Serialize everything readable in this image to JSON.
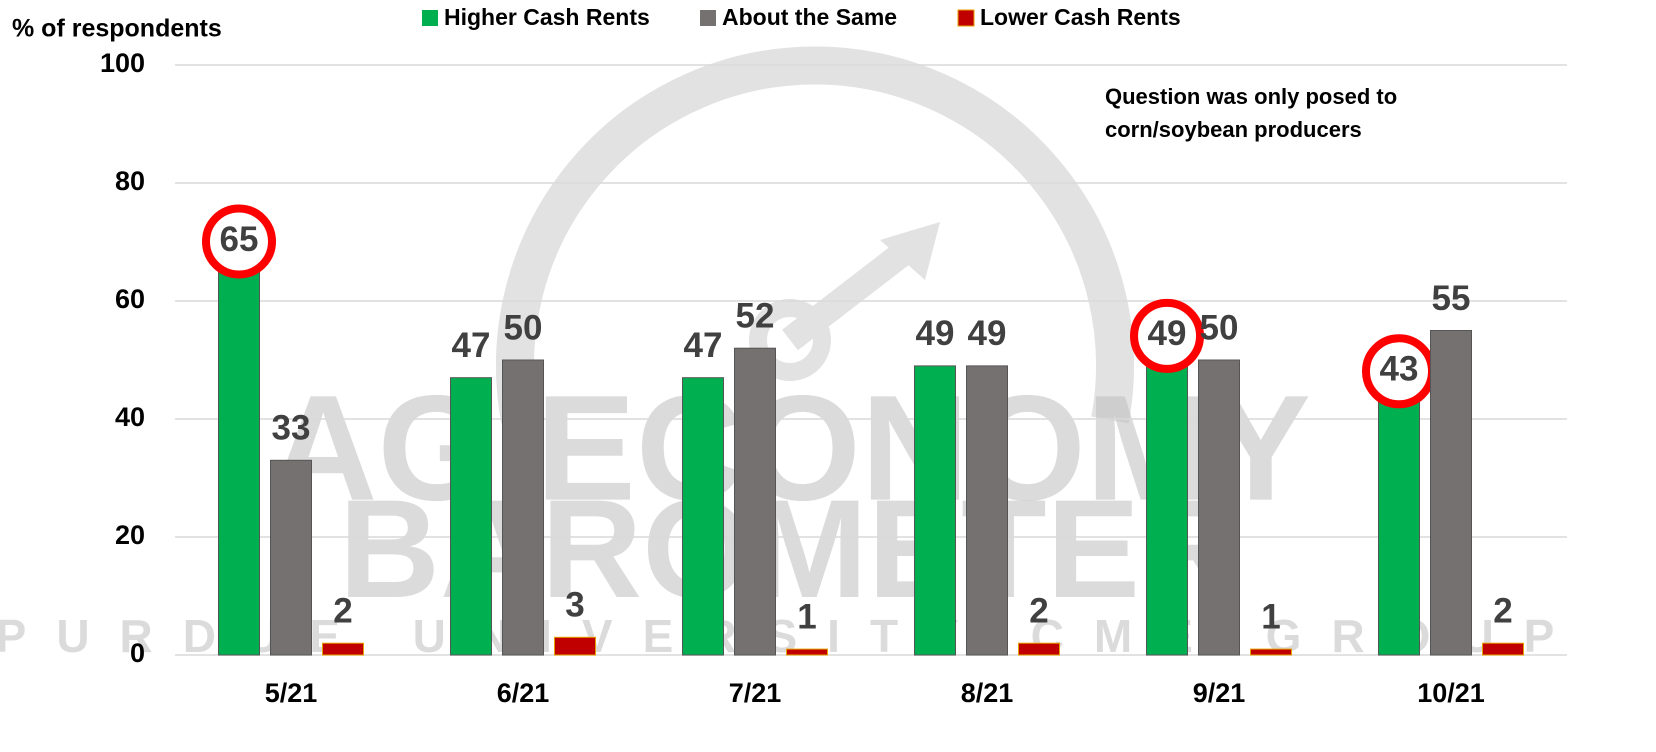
{
  "chart_data": {
    "type": "bar",
    "y_label": "% of respondents",
    "annotation": [
      "Question was only posed to",
      "corn/soybean producers"
    ],
    "watermark": [
      "AG ECONOMY",
      "BAROMETER",
      "PURDUE UNIVERSITY CME GROUP"
    ],
    "categories": [
      "5/21",
      "6/21",
      "7/21",
      "8/21",
      "9/21",
      "10/21"
    ],
    "series": [
      {
        "name": "Higher Cash Rents",
        "color": "#00b050",
        "values": [
          65,
          47,
          47,
          49,
          49,
          43
        ],
        "highlight": [
          true,
          false,
          false,
          false,
          true,
          true
        ]
      },
      {
        "name": "About the Same",
        "color": "#767171",
        "values": [
          33,
          50,
          52,
          49,
          50,
          55
        ]
      },
      {
        "name": "Lower Cash Rents",
        "color": "#c00000",
        "values": [
          2,
          3,
          1,
          2,
          1,
          2
        ]
      }
    ],
    "ylim": [
      0,
      100
    ],
    "yticks": [
      0,
      20,
      40,
      60,
      80,
      100
    ],
    "grid": true,
    "legend": "top"
  }
}
